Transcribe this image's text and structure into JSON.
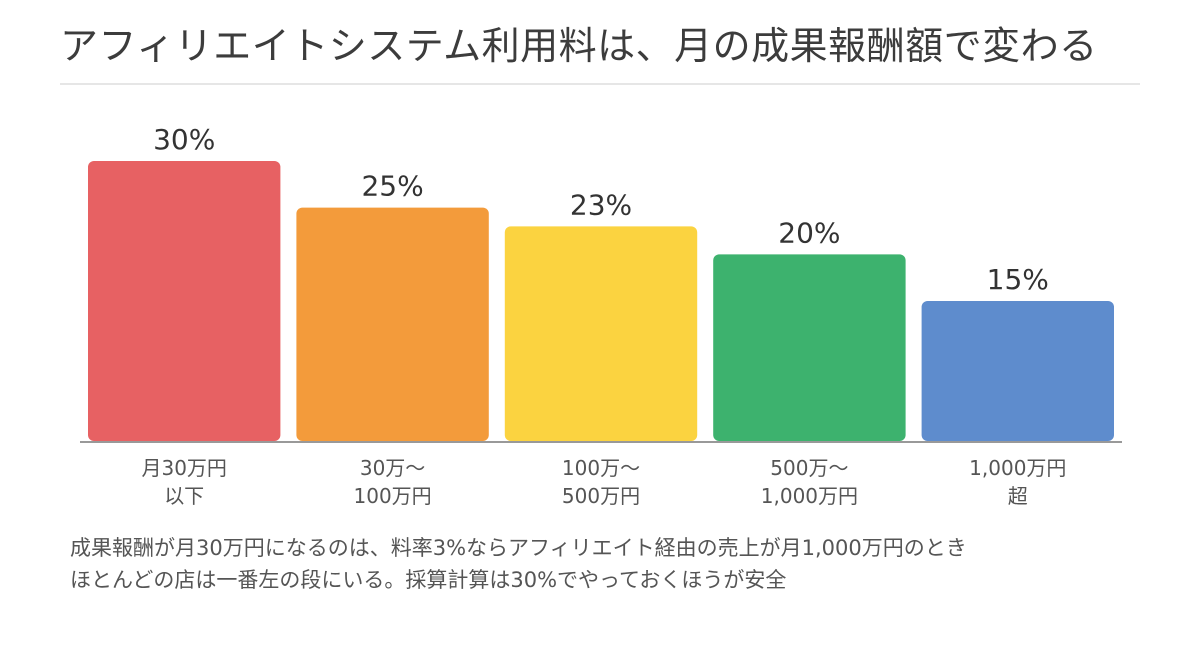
{
  "title": "アフィリエイトシステム利用料は、月の成果報酬額で変わる",
  "caption": {
    "line1": "成果報酬が月30万円になるのは、料率3%ならアフィリエイト経由の売上が月1,000万円のとき",
    "line2": "ほとんどの店は一番左の段にいる。採算計算は30%でやっておくほうが安全"
  },
  "chart_data": {
    "type": "bar",
    "categories": [
      [
        "月30万円",
        "以下"
      ],
      [
        "30万〜",
        "100万円"
      ],
      [
        "100万〜",
        "500万円"
      ],
      [
        "500万〜",
        "1,000万円"
      ],
      [
        "1,000万円",
        "超"
      ]
    ],
    "values": [
      30,
      25,
      23,
      20,
      15
    ],
    "value_labels": [
      "30%",
      "25%",
      "23%",
      "20%",
      "15%"
    ],
    "colors": [
      "#e76163",
      "#f39b3b",
      "#fbd340",
      "#3db26e",
      "#5e8ccd"
    ],
    "ylim": [
      0,
      30
    ],
    "grid": false,
    "legend": false,
    "baseline_color": "#999999",
    "label_color": "#555555",
    "value_label_color": "#333333"
  }
}
